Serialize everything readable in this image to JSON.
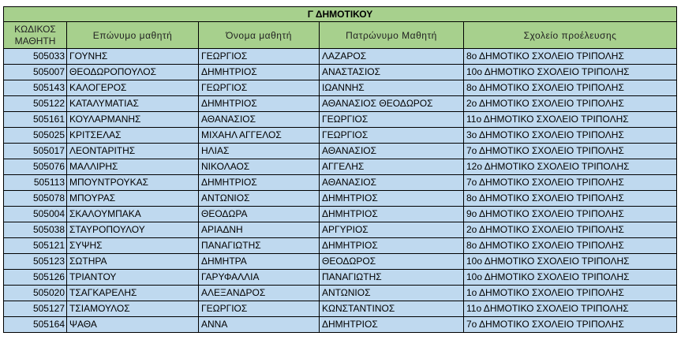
{
  "table": {
    "title": "Γ ΔΗΜΟΤΙΚΟΥ",
    "headers": {
      "code_line1": "ΚΩΔΙΚΟΣ",
      "code_line2": "ΜΑΘΗΤΗ",
      "surname": "Επώνυμο μαθητή",
      "first_name": "Όνομα μαθητή",
      "father_name": "Πατρώνυμο Μαθητή",
      "school": "Σχολείο προέλευσης"
    },
    "rows": [
      {
        "code": "505033",
        "surname": "ΓΟΥΝΗΣ",
        "first_name": "ΓΕΩΡΓΙΟΣ",
        "father_name": "ΛΑΖΑΡΟΣ",
        "school": "8ο ΔΗΜΟΤΙΚΟ ΣΧΟΛΕΙΟ ΤΡΙΠΟΛΗΣ"
      },
      {
        "code": "505007",
        "surname": "ΘΕΟΔΩΡΟΠΟΥΛΟΣ",
        "first_name": "ΔΗΜΗΤΡΙΟΣ",
        "father_name": "ΑΝΑΣΤΑΣΙΟΣ",
        "school": "10ο ΔΗΜΟΤΙΚΟ ΣΧΟΛΕΙΟ ΤΡΙΠΟΛΗΣ"
      },
      {
        "code": "505143",
        "surname": "ΚΑΛΟΓΕΡΟΣ",
        "first_name": "ΓΕΩΡΓΙΟΣ",
        "father_name": "ΙΩΑΝΝΗΣ",
        "school": "8ο ΔΗΜΟΤΙΚΟ ΣΧΟΛΕΙΟ ΤΡΙΠΟΛΗΣ"
      },
      {
        "code": "505122",
        "surname": "ΚΑΤΑΛΥΜΑΤΙΑΣ",
        "first_name": "ΔΗΜΗΤΡΙΟΣ",
        "father_name": "ΑΘΑΝΑΣΙΟΣ ΘΕΟΔΩΡΟΣ",
        "school": "2ο ΔΗΜΟΤΙΚΟ ΣΧΟΛΕΙΟ ΤΡΙΠΟΛΗΣ"
      },
      {
        "code": "505161",
        "surname": "ΚΟΥΛΑΡΜΑΝΗΣ",
        "first_name": "ΑΘΑΝΑΣΙΟΣ",
        "father_name": "ΓΕΩΡΓΙΟΣ",
        "school": "11ο ΔΗΜΟΤΙΚΟ ΣΧΟΛΕΙΟ ΤΡΙΠΟΛΗΣ"
      },
      {
        "code": "505025",
        "surname": "ΚΡΙΤΣΕΛΑΣ",
        "first_name": "ΜΙΧΑΗΛ ΑΓΓΕΛΟΣ",
        "father_name": "ΓΕΩΡΓΙΟΣ",
        "school": "3ο ΔΗΜΟΤΙΚΟ ΣΧΟΛΕΙΟ ΤΡΙΠΟΛΗΣ"
      },
      {
        "code": "505017",
        "surname": "ΛΕΟΝΤΑΡΙΤΗΣ",
        "first_name": "ΗΛΙΑΣ",
        "father_name": "ΑΘΑΝΑΣΙΟΣ",
        "school": "7ο ΔΗΜΟΤΙΚΟ ΣΧΟΛΕΙΟ ΤΡΙΠΟΛΗΣ"
      },
      {
        "code": "505076",
        "surname": "ΜΑΛΛΙΡΗΣ",
        "first_name": "ΝΙΚΟΛΑΟΣ",
        "father_name": "ΑΓΓΕΛΗΣ",
        "school": "12ο ΔΗΜΟΤΙΚΟ ΣΧΟΛΕΙΟ ΤΡΙΠΟΛΗΣ"
      },
      {
        "code": "505113",
        "surname": "ΜΠΟΥΝΤΡΟΥΚΑΣ",
        "first_name": "ΔΗΜΗΤΡΙΟΣ",
        "father_name": "ΑΘΑΝΑΣΙΟΣ",
        "school": "7ο ΔΗΜΟΤΙΚΟ ΣΧΟΛΕΙΟ ΤΡΙΠΟΛΗΣ"
      },
      {
        "code": "505078",
        "surname": "ΜΠΟΥΡΑΣ",
        "first_name": "ΑΝΤΩΝΙΟΣ",
        "father_name": "ΔΗΜΗΤΡΙΟΣ",
        "school": "8ο ΔΗΜΟΤΙΚΟ ΣΧΟΛΕΙΟ ΤΡΙΠΟΛΗΣ"
      },
      {
        "code": "505004",
        "surname": "ΣΚΑΛΟΥΜΠΑΚΑ",
        "first_name": "ΘΕΟΔΩΡΑ",
        "father_name": "ΔΗΜΗΤΡΙΟΣ",
        "school": "9ο ΔΗΜΟΤΙΚΟ ΣΧΟΛΕΙΟ ΤΡΙΠΟΛΗΣ"
      },
      {
        "code": "505038",
        "surname": "ΣΤΑΥΡΟΠΟΥΛΟΥ",
        "first_name": "ΑΡΙΑΔΝΗ",
        "father_name": "ΑΡΓΥΡΙΟΣ",
        "school": "2ο ΔΗΜΟΤΙΚΟ ΣΧΟΛΕΙΟ ΤΡΙΠΟΛΗΣ"
      },
      {
        "code": "505121",
        "surname": "ΣΥΨΗΣ",
        "first_name": "ΠΑΝΑΓΙΩΤΗΣ",
        "father_name": "ΔΗΜΗΤΡΙΟΣ",
        "school": "8ο ΔΗΜΟΤΙΚΟ ΣΧΟΛΕΙΟ ΤΡΙΠΟΛΗΣ"
      },
      {
        "code": "505123",
        "surname": "ΣΩΤΗΡΑ",
        "first_name": "ΔΗΜΗΤΡΑ",
        "father_name": "ΘΕΟΔΩΡΟΣ",
        "school": "10ο ΔΗΜΟΤΙΚΟ ΣΧΟΛΕΙΟ ΤΡΙΠΟΛΗΣ"
      },
      {
        "code": "505126",
        "surname": "ΤΡΙΑΝΤΟΥ",
        "first_name": "ΓΑΡΥΦΑΛΛΙΑ",
        "father_name": "ΠΑΝΑΓΙΩΤΗΣ",
        "school": "10ο ΔΗΜΟΤΙΚΟ ΣΧΟΛΕΙΟ ΤΡΙΠΟΛΗΣ"
      },
      {
        "code": "505020",
        "surname": "ΤΣΑΓΚΑΡΕΛΗΣ",
        "first_name": "ΑΛΕΞΑΝΔΡΟΣ",
        "father_name": "ΑΝΤΩΝΙΟΣ",
        "school": "1ο ΔΗΜΟΤΙΚΟ ΣΧΟΛΕΙΟ ΤΡΙΠΟΛΗΣ"
      },
      {
        "code": "505127",
        "surname": "ΤΣΙΑΜΟΥΛΟΣ",
        "first_name": "ΓΕΩΡΓΙΟΣ",
        "father_name": "ΚΩΝΣΤΑΝΤΙΝΟΣ",
        "school": "11ο ΔΗΜΟΤΙΚΟ ΣΧΟΛΕΙΟ ΤΡΙΠΟΛΗΣ"
      },
      {
        "code": "505164",
        "surname": "ΨΑΘΑ",
        "first_name": "ΑΝΝΑ",
        "father_name": "ΔΗΜΗΤΡΙΟΣ",
        "school": "7ο ΔΗΜΟΤΙΚΟ ΣΧΟΛΕΙΟ ΤΡΙΠΟΛΗΣ"
      }
    ]
  },
  "colors": {
    "header_fill": "#a7d08d",
    "row_fill": "#bfd9ef",
    "border": "#000000"
  }
}
